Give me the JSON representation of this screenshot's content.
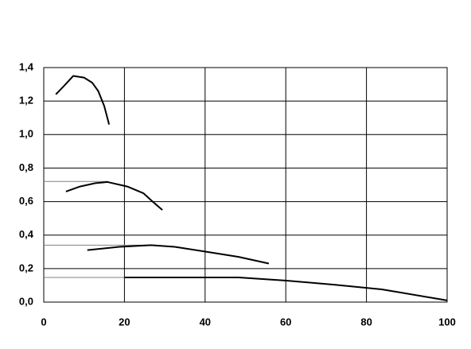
{
  "chart_data": {
    "type": "line",
    "xlim": [
      0,
      100
    ],
    "xticks": [
      0,
      20,
      40,
      60,
      80,
      100
    ],
    "ylim": [
      0,
      1.4
    ],
    "yticks": [
      {
        "value": 0,
        "label": "0,0"
      },
      {
        "value": 0.2,
        "label": "0,2"
      },
      {
        "value": 0.4,
        "label": "0,4"
      },
      {
        "value": 0.6,
        "label": "0,6"
      },
      {
        "value": 0.8,
        "label": "0,8"
      },
      {
        "value": 1.0,
        "label": "1,0"
      },
      {
        "value": 1.2,
        "label": "1,2"
      },
      {
        "value": 1.4,
        "label": "1,4"
      }
    ],
    "grid": true,
    "series": [
      {
        "color": "#000000",
        "x": [
          3,
          5,
          7.3,
          10,
          12,
          13.5,
          15,
          16.2
        ],
        "values": [
          1.24,
          1.29,
          1.35,
          1.34,
          1.31,
          1.26,
          1.17,
          1.06
        ]
      },
      {
        "color": "#000000",
        "x": [
          5.5,
          9,
          12.8,
          15.8,
          20.7,
          24.7,
          27,
          29.4
        ],
        "values": [
          0.66,
          0.69,
          0.71,
          0.717,
          0.69,
          0.65,
          0.6,
          0.55
        ]
      },
      {
        "color": "#000000",
        "x": [
          10.8,
          18.7,
          26.6,
          32.5,
          40.4,
          48.3,
          55.8
        ],
        "values": [
          0.31,
          0.33,
          0.34,
          0.33,
          0.3,
          0.27,
          0.23
        ]
      },
      {
        "color": "#000000",
        "x": [
          20,
          48.3,
          60.2,
          72,
          83.8,
          100
        ],
        "values": [
          0.147,
          0.147,
          0.128,
          0.104,
          0.076,
          0.01
        ]
      }
    ],
    "reference_lines": [
      {
        "y": 0.72,
        "x_end": 16
      },
      {
        "y": 0.34,
        "x_end": 26.6
      },
      {
        "y": 0.147,
        "x_end": 20
      }
    ]
  }
}
